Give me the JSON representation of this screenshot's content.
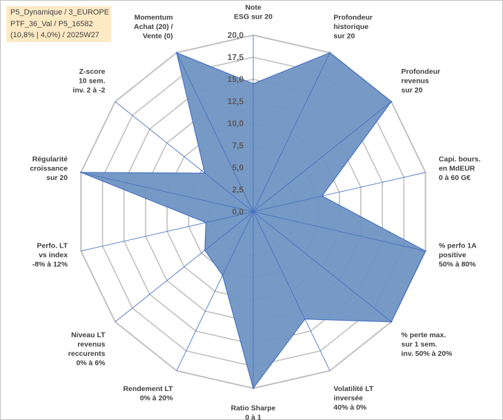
{
  "header": {
    "lines": [
      "P5_Dynamique / 3_EUROPE",
      "PTF_36_Val / P5_16582",
      "(10,8% | 4,0%) / 2025W27"
    ]
  },
  "colors": {
    "fill": "#7094c2",
    "stroke": "#4472c4",
    "grid": "#bfbfbf",
    "header_bg": "#fde9c4"
  },
  "chart_data": {
    "type": "radar",
    "axes": [
      [
        "Note",
        "ESG sur 20"
      ],
      [
        "Profondeur",
        "historique",
        "sur 20"
      ],
      [
        "Profondeur",
        "revenus",
        "sur 20"
      ],
      [
        "Capi. bours.",
        "en MdEUR",
        "0 à 60 G€"
      ],
      [
        "% perfo 1A",
        "positive",
        "50% à 80%"
      ],
      [
        "% perte max.",
        "sur 1 sem.",
        "inv. 50% à 20%"
      ],
      [
        "Volatilité LT",
        "inversée",
        "40% à 0%"
      ],
      [
        "Ratio Sharpe",
        "0 à 1"
      ],
      [
        "Rendement LT",
        "0% à 20%"
      ],
      [
        "Niveau LT",
        "revenus",
        "reccurents",
        "0% à 6%"
      ],
      [
        "Perfo. LT",
        "vs index",
        "-8% à 12%"
      ],
      [
        "Régularité",
        "croissance",
        "sur 20"
      ],
      [
        "Z-score",
        "10 sem.",
        "inv. 2 à -2"
      ],
      [
        "Momentum",
        "Achat (20) /",
        "Vente (0)"
      ]
    ],
    "values": [
      14.5,
      20.0,
      20.0,
      8.0,
      20.0,
      20.0,
      13.5,
      20.0,
      8.0,
      7.0,
      5.5,
      20.0,
      7.0,
      20.0
    ],
    "ylim": [
      0,
      20
    ],
    "ticks": [
      "0,0",
      "2,5",
      "5,0",
      "7,5",
      "10,0",
      "12,5",
      "15,0",
      "17,5",
      "20,0"
    ],
    "grid": true
  }
}
